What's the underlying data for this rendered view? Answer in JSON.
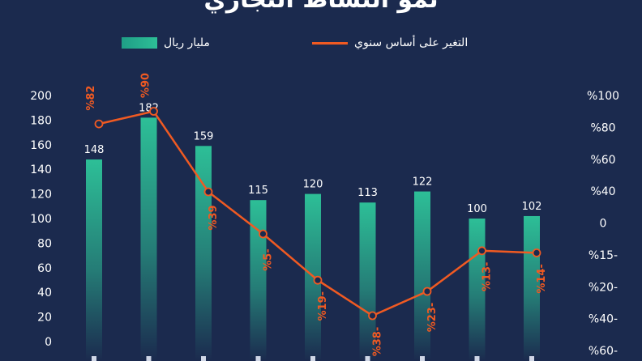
{
  "title": "نمو النشاط التجاري",
  "legend": {
    "bars": "مليار ريال",
    "line": "التغير على أساس سنوي"
  },
  "colors": {
    "background": "#1b2a4e",
    "bar": "#2dbf97",
    "line": "#f05a22",
    "text": "#ffffff"
  },
  "chart_data": {
    "type": "bar",
    "series": [
      {
        "name": "مليار ريال",
        "type": "bar",
        "values": [
          148,
          182,
          159,
          115,
          120,
          113,
          122,
          100,
          102
        ],
        "labels": [
          "148",
          "182",
          "159",
          "115",
          "120",
          "113",
          "122",
          "100",
          "102"
        ]
      },
      {
        "name": "التغير على أساس سنوي",
        "type": "line",
        "values": [
          82,
          90,
          39,
          -5,
          -19,
          -38,
          -23,
          -13,
          -14
        ],
        "labels": [
          "%82",
          "%90",
          "%39",
          "%5-",
          "%19-",
          "%38-",
          "%23-",
          "%13-",
          "%14-"
        ]
      }
    ],
    "y_left": {
      "ylim": [
        0,
        200
      ],
      "ticks": [
        "0",
        "20",
        "40",
        "60",
        "80",
        "100",
        "120",
        "140",
        "160",
        "180",
        "200"
      ]
    },
    "y_right": {
      "ticks": [
        "%60-",
        "%40-",
        "%20-",
        "%15-",
        "0",
        "%40",
        "%60",
        "%80",
        "%100"
      ]
    },
    "legend_position": "top"
  }
}
